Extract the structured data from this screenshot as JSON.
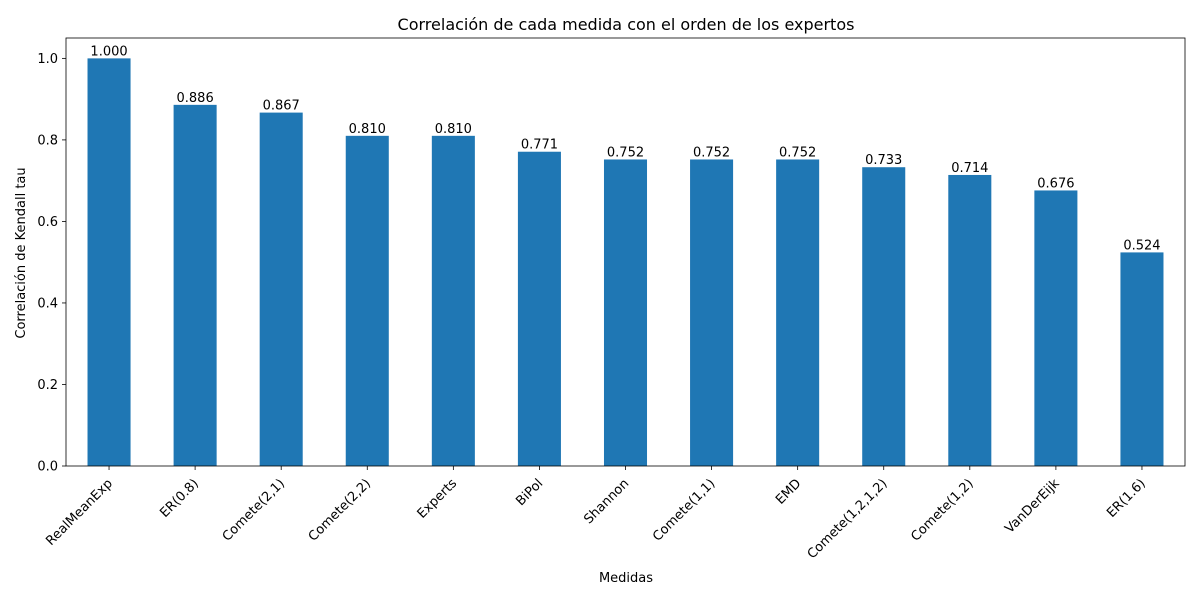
{
  "chart_data": {
    "type": "bar",
    "title": "Correlación de cada medida con el orden de los expertos",
    "xlabel": "Medidas",
    "ylabel": "Correlación de Kendall tau",
    "categories": [
      "RealMeanExp",
      "ER(0.8)",
      "Comete(2,1)",
      "Comete(2,2)",
      "Experts",
      "BiPol",
      "Shannon",
      "Comete(1,1)",
      "EMD",
      "Comete(1,2,1,2)",
      "Comete(1,2)",
      "VanDerEijk",
      "ER(1.6)"
    ],
    "values": [
      1.0,
      0.886,
      0.867,
      0.81,
      0.81,
      0.771,
      0.752,
      0.752,
      0.752,
      0.733,
      0.714,
      0.676,
      0.524
    ],
    "value_labels": [
      "1.000",
      "0.886",
      "0.867",
      "0.810",
      "0.810",
      "0.771",
      "0.752",
      "0.752",
      "0.752",
      "0.733",
      "0.714",
      "0.676",
      "0.524"
    ],
    "ylim": [
      0,
      1.05
    ],
    "yticks": [
      0.0,
      0.2,
      0.4,
      0.6,
      0.8,
      1.0
    ],
    "ytick_labels": [
      "0.0",
      "0.2",
      "0.4",
      "0.6",
      "0.8",
      "1.0"
    ],
    "bar_color": "#1f77b4",
    "grid": false,
    "legend": "none"
  }
}
